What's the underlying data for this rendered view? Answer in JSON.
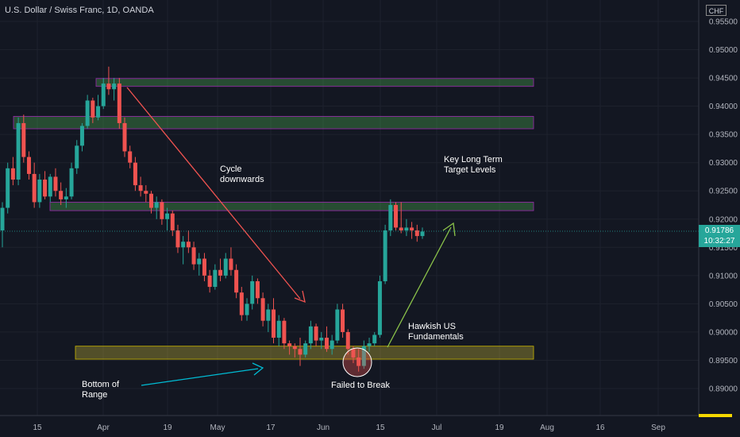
{
  "chart_data": {
    "type": "candlestick",
    "title": "U.S. Dollar / Swiss Franc, 1D, OANDA",
    "currency": "CHF",
    "ylim": [
      0.886,
      0.9575
    ],
    "y_ticks": [
      "0.95500",
      "0.95000",
      "0.94500",
      "0.94000",
      "0.93500",
      "0.93000",
      "0.92500",
      "0.92000",
      "0.91500",
      "0.91000",
      "0.90500",
      "0.90000",
      "0.89500",
      "0.89000"
    ],
    "x_ticks": [
      "15",
      "Apr",
      "19",
      "May",
      "17",
      "Jun",
      "15",
      "Jul",
      "19",
      "Aug",
      "16",
      "Sep"
    ],
    "last_price": "0.91786",
    "countdown": "10:32:27",
    "candles": [
      [
        0.918,
        0.923,
        0.915,
        0.922
      ],
      [
        0.922,
        0.93,
        0.921,
        0.929
      ],
      [
        0.929,
        0.931,
        0.926,
        0.927
      ],
      [
        0.927,
        0.938,
        0.926,
        0.937
      ],
      [
        0.937,
        0.9385,
        0.93,
        0.931
      ],
      [
        0.931,
        0.932,
        0.927,
        0.928
      ],
      [
        0.928,
        0.93,
        0.922,
        0.923
      ],
      [
        0.923,
        0.928,
        0.922,
        0.927
      ],
      [
        0.927,
        0.9285,
        0.9235,
        0.924
      ],
      [
        0.924,
        0.928,
        0.923,
        0.9275
      ],
      [
        0.9275,
        0.929,
        0.924,
        0.925
      ],
      [
        0.925,
        0.9265,
        0.9225,
        0.9235
      ],
      [
        0.9235,
        0.9255,
        0.922,
        0.924
      ],
      [
        0.924,
        0.93,
        0.9235,
        0.929
      ],
      [
        0.929,
        0.934,
        0.928,
        0.933
      ],
      [
        0.933,
        0.937,
        0.932,
        0.9365
      ],
      [
        0.9365,
        0.942,
        0.936,
        0.941
      ],
      [
        0.941,
        0.9415,
        0.937,
        0.938
      ],
      [
        0.938,
        0.942,
        0.9375,
        0.94
      ],
      [
        0.94,
        0.945,
        0.9395,
        0.944
      ],
      [
        0.944,
        0.947,
        0.942,
        0.943
      ],
      [
        0.943,
        0.945,
        0.941,
        0.944
      ],
      [
        0.944,
        0.945,
        0.936,
        0.937
      ],
      [
        0.937,
        0.938,
        0.931,
        0.932
      ],
      [
        0.932,
        0.933,
        0.929,
        0.93
      ],
      [
        0.93,
        0.931,
        0.925,
        0.926
      ],
      [
        0.926,
        0.9275,
        0.924,
        0.925
      ],
      [
        0.925,
        0.926,
        0.923,
        0.9245
      ],
      [
        0.9245,
        0.925,
        0.921,
        0.922
      ],
      [
        0.922,
        0.924,
        0.92,
        0.923
      ],
      [
        0.923,
        0.9235,
        0.919,
        0.92
      ],
      [
        0.92,
        0.922,
        0.918,
        0.921
      ],
      [
        0.921,
        0.9215,
        0.917,
        0.918
      ],
      [
        0.918,
        0.919,
        0.914,
        0.915
      ],
      [
        0.915,
        0.917,
        0.912,
        0.916
      ],
      [
        0.916,
        0.918,
        0.914,
        0.915
      ],
      [
        0.915,
        0.916,
        0.911,
        0.912
      ],
      [
        0.912,
        0.914,
        0.91,
        0.913
      ],
      [
        0.913,
        0.914,
        0.909,
        0.91
      ],
      [
        0.91,
        0.911,
        0.907,
        0.908
      ],
      [
        0.908,
        0.912,
        0.9075,
        0.911
      ],
      [
        0.911,
        0.913,
        0.909,
        0.91
      ],
      [
        0.91,
        0.914,
        0.9095,
        0.913
      ],
      [
        0.913,
        0.915,
        0.91,
        0.911
      ],
      [
        0.911,
        0.912,
        0.906,
        0.907
      ],
      [
        0.907,
        0.908,
        0.902,
        0.903
      ],
      [
        0.903,
        0.906,
        0.902,
        0.905
      ],
      [
        0.905,
        0.91,
        0.904,
        0.909
      ],
      [
        0.909,
        0.9095,
        0.905,
        0.906
      ],
      [
        0.906,
        0.907,
        0.901,
        0.902
      ],
      [
        0.902,
        0.905,
        0.9,
        0.904
      ],
      [
        0.904,
        0.906,
        0.898,
        0.899
      ],
      [
        0.899,
        0.903,
        0.8975,
        0.902
      ],
      [
        0.902,
        0.9025,
        0.897,
        0.898
      ],
      [
        0.898,
        0.8985,
        0.896,
        0.8975
      ],
      [
        0.8975,
        0.898,
        0.8955,
        0.897
      ],
      [
        0.897,
        0.899,
        0.894,
        0.896
      ],
      [
        0.896,
        0.8985,
        0.8955,
        0.898
      ],
      [
        0.898,
        0.902,
        0.897,
        0.901
      ],
      [
        0.901,
        0.9015,
        0.8975,
        0.8985
      ],
      [
        0.8985,
        0.9,
        0.897,
        0.899
      ],
      [
        0.899,
        0.901,
        0.8965,
        0.897
      ],
      [
        0.897,
        0.8995,
        0.896,
        0.8985
      ],
      [
        0.8985,
        0.905,
        0.898,
        0.904
      ],
      [
        0.904,
        0.905,
        0.899,
        0.9
      ],
      [
        0.9,
        0.9005,
        0.896,
        0.897
      ],
      [
        0.897,
        0.8975,
        0.8945,
        0.8955
      ],
      [
        0.8955,
        0.897,
        0.893,
        0.894
      ],
      [
        0.894,
        0.8985,
        0.8935,
        0.8975
      ],
      [
        0.8975,
        0.899,
        0.8965,
        0.898
      ],
      [
        0.898,
        0.9,
        0.8975,
        0.8995
      ],
      [
        0.8995,
        0.91,
        0.899,
        0.909
      ],
      [
        0.909,
        0.919,
        0.9085,
        0.918
      ],
      [
        0.918,
        0.9235,
        0.917,
        0.9225
      ],
      [
        0.9225,
        0.923,
        0.918,
        0.9185
      ],
      [
        0.9185,
        0.923,
        0.9175,
        0.918
      ],
      [
        0.918,
        0.92,
        0.917,
        0.9185
      ],
      [
        0.9185,
        0.9195,
        0.9165,
        0.918
      ],
      [
        0.918,
        0.919,
        0.916,
        0.917
      ],
      [
        0.917,
        0.9185,
        0.9165,
        0.9178
      ]
    ],
    "zones": [
      {
        "top": 0.9449,
        "bottom": 0.9435,
        "color": "green"
      },
      {
        "top": 0.9382,
        "bottom": 0.936,
        "color": "green"
      },
      {
        "top": 0.923,
        "bottom": 0.9215,
        "color": "green"
      },
      {
        "top": 0.8975,
        "bottom": 0.8952,
        "color": "yellow"
      }
    ]
  },
  "annotations": {
    "cycle": "Cycle\ndownwards",
    "key_levels": "Key Long Term\nTarget Levels",
    "hawkish": "Hawkish US\nFundamentals",
    "bottom": "Bottom of\nRange",
    "failed": "Failed to Break"
  }
}
